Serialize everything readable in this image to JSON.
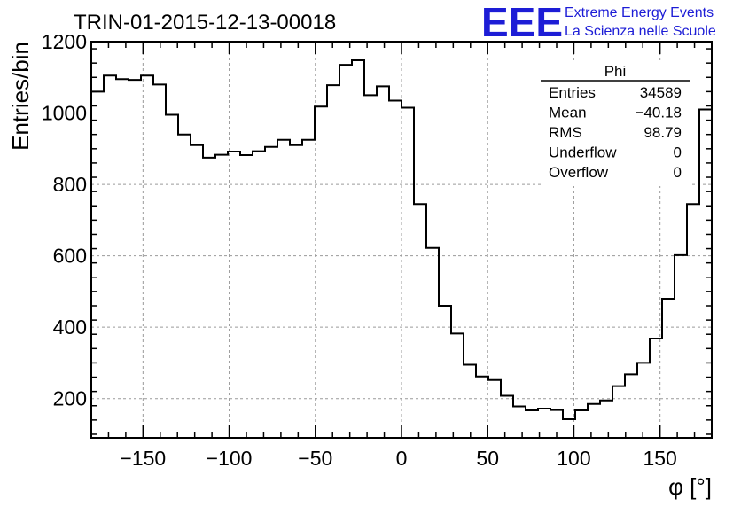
{
  "chart_data": {
    "type": "histogram",
    "title": "TRIN-01-2015-12-13-00018",
    "xlabel": "φ [°]",
    "ylabel": "Entries/bin",
    "xlim": [
      -180,
      180
    ],
    "ylim": [
      90,
      1200
    ],
    "x_ticks": [
      -150,
      -100,
      -50,
      0,
      50,
      100,
      150
    ],
    "x_tick_labels": [
      "−150",
      "−100",
      "−50",
      "0",
      "50",
      "100",
      "150"
    ],
    "y_ticks": [
      200,
      400,
      600,
      800,
      1000,
      1200
    ],
    "y_tick_labels": [
      "200",
      "400",
      "600",
      "800",
      "1000",
      "1200"
    ],
    "grid": true,
    "bin_edges_start": -180,
    "bin_width": 7.2,
    "values": [
      1060,
      1105,
      1095,
      1093,
      1105,
      1080,
      995,
      940,
      910,
      875,
      883,
      892,
      882,
      893,
      905,
      925,
      910,
      925,
      1018,
      1078,
      1135,
      1148,
      1050,
      1075,
      1035,
      1015,
      745,
      622,
      460,
      382,
      295,
      262,
      252,
      208,
      178,
      167,
      172,
      168,
      142,
      167,
      185,
      195,
      235,
      268,
      300,
      368,
      480,
      602,
      745,
      1010
    ],
    "stats_box": {
      "title": "Phi",
      "rows": [
        {
          "label": "Entries",
          "value": "34589"
        },
        {
          "label": "Mean",
          "value": "−40.18"
        },
        {
          "label": "RMS",
          "value": "98.79"
        },
        {
          "label": "Underflow",
          "value": "0"
        },
        {
          "label": "Overflow",
          "value": "0"
        }
      ]
    }
  },
  "logo": {
    "big": "EEE",
    "line1": "Extreme Energy Events",
    "line2": "La Scienza nelle Scuole",
    "color": "#1d1dd6"
  }
}
